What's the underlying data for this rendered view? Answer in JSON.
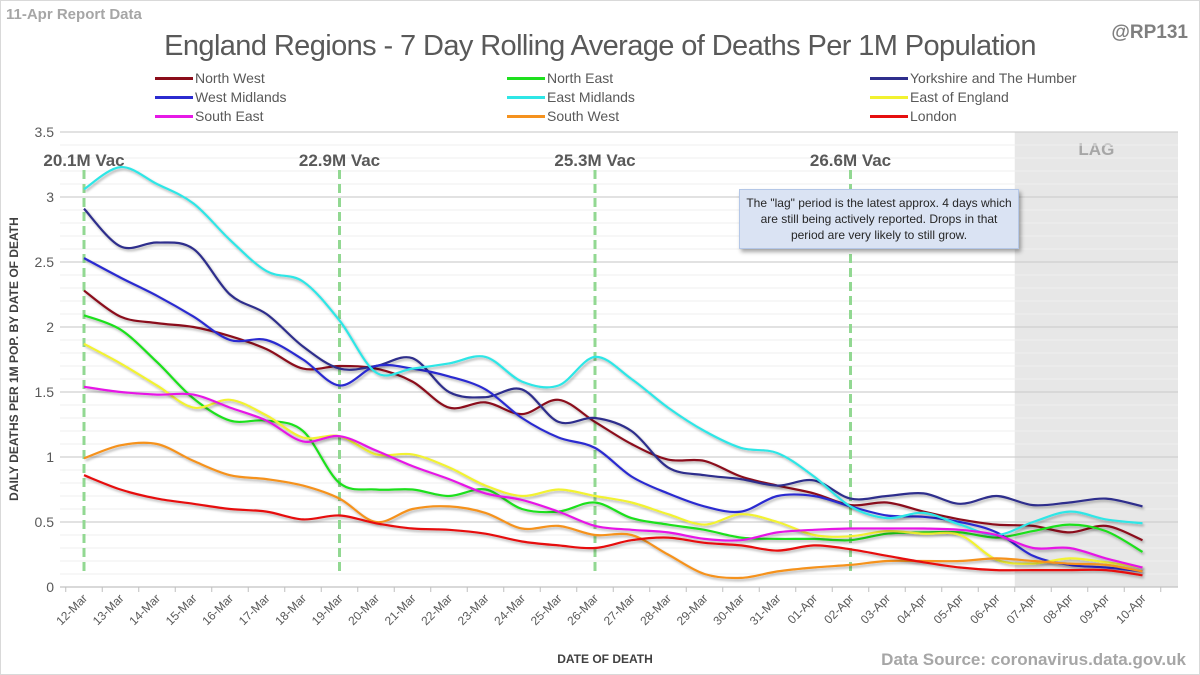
{
  "header": {
    "report_label": "11-Apr Report Data",
    "handle": "@RP131",
    "source": "Data Source: coronavirus.data.gov.uk"
  },
  "annotation": {
    "lag_note": "The \"lag\" period is the latest approx. 4 days which are still being actively reported. Drops in that period are very likely to still grow."
  },
  "chart_data": {
    "type": "line",
    "title": "England Regions - 7 Day Rolling Average of Deaths Per 1M Population",
    "xlabel": "DATE OF DEATH",
    "ylabel": "DAILY DEATHS PER 1M POP. BY DATE OF DEATH",
    "ylim": [
      0,
      3.5
    ],
    "yticks": [
      "0",
      "0.5",
      "1",
      "1.5",
      "2",
      "2.5",
      "3",
      "3.5"
    ],
    "grid": true,
    "legend_position": "top",
    "x": [
      "12-Mar",
      "13-Mar",
      "14-Mar",
      "15-Mar",
      "16-Mar",
      "17-Mar",
      "18-Mar",
      "19-Mar",
      "20-Mar",
      "21-Mar",
      "22-Mar",
      "23-Mar",
      "24-Mar",
      "25-Mar",
      "26-Mar",
      "27-Mar",
      "28-Mar",
      "29-Mar",
      "30-Mar",
      "31-Mar",
      "01-Apr",
      "02-Apr",
      "03-Apr",
      "04-Apr",
      "05-Apr",
      "06-Apr",
      "07-Apr",
      "08-Apr",
      "09-Apr",
      "10-Apr"
    ],
    "vaccination_markers": [
      {
        "date": "12-Mar",
        "label": "20.1M Vac"
      },
      {
        "date": "19-Mar",
        "label": "22.9M Vac"
      },
      {
        "date": "26-Mar",
        "label": "25.3M Vac"
      },
      {
        "date": "02-Apr",
        "label": "26.6M Vac"
      }
    ],
    "lag_region": {
      "label": "LAG",
      "start_after": "06-Apr",
      "end": "10-Apr"
    },
    "series": [
      {
        "name": "North West",
        "color": "#8b0d1a",
        "values": [
          2.28,
          2.08,
          2.03,
          2.0,
          1.93,
          1.83,
          1.68,
          1.7,
          1.68,
          1.58,
          1.38,
          1.42,
          1.33,
          1.44,
          1.27,
          1.1,
          0.98,
          0.97,
          0.85,
          0.78,
          0.72,
          0.63,
          0.65,
          0.58,
          0.52,
          0.48,
          0.47,
          0.42,
          0.47,
          0.36
        ]
      },
      {
        "name": "North East",
        "color": "#1ee01e",
        "values": [
          2.09,
          1.98,
          1.73,
          1.45,
          1.28,
          1.28,
          1.2,
          0.8,
          0.75,
          0.75,
          0.7,
          0.75,
          0.6,
          0.58,
          0.65,
          0.53,
          0.48,
          0.44,
          0.38,
          0.37,
          0.37,
          0.36,
          0.41,
          0.42,
          0.42,
          0.38,
          0.43,
          0.48,
          0.43,
          0.27
        ]
      },
      {
        "name": "Yorkshire and The Humber",
        "color": "#2e2e8c",
        "values": [
          2.91,
          2.62,
          2.65,
          2.6,
          2.25,
          2.1,
          1.85,
          1.68,
          1.7,
          1.76,
          1.5,
          1.46,
          1.52,
          1.27,
          1.3,
          1.2,
          0.92,
          0.86,
          0.83,
          0.78,
          0.82,
          0.68,
          0.7,
          0.72,
          0.64,
          0.7,
          0.63,
          0.65,
          0.68,
          0.62
        ]
      },
      {
        "name": "West Midlands",
        "color": "#2b2bd0",
        "values": [
          2.53,
          2.38,
          2.24,
          2.08,
          1.9,
          1.9,
          1.75,
          1.55,
          1.7,
          1.68,
          1.62,
          1.52,
          1.3,
          1.15,
          1.07,
          0.85,
          0.72,
          0.62,
          0.58,
          0.7,
          0.7,
          0.62,
          0.55,
          0.54,
          0.5,
          0.42,
          0.24,
          0.17,
          0.15,
          0.12
        ]
      },
      {
        "name": "East Midlands",
        "color": "#2ee6e6",
        "values": [
          3.06,
          3.23,
          3.1,
          2.95,
          2.67,
          2.43,
          2.35,
          2.05,
          1.65,
          1.68,
          1.72,
          1.77,
          1.58,
          1.55,
          1.77,
          1.6,
          1.38,
          1.2,
          1.07,
          1.03,
          0.85,
          0.62,
          0.53,
          0.57,
          0.48,
          0.4,
          0.5,
          0.58,
          0.52,
          0.49
        ]
      },
      {
        "name": "East of England",
        "color": "#f2f230",
        "values": [
          1.87,
          1.72,
          1.55,
          1.38,
          1.44,
          1.32,
          1.15,
          1.16,
          1.02,
          1.02,
          0.92,
          0.78,
          0.7,
          0.75,
          0.7,
          0.65,
          0.56,
          0.48,
          0.56,
          0.5,
          0.4,
          0.39,
          0.43,
          0.41,
          0.4,
          0.21,
          0.18,
          0.22,
          0.19,
          0.15
        ]
      },
      {
        "name": "South East",
        "color": "#e619e6",
        "values": [
          1.54,
          1.5,
          1.48,
          1.48,
          1.38,
          1.28,
          1.12,
          1.16,
          1.05,
          0.93,
          0.83,
          0.72,
          0.67,
          0.58,
          0.47,
          0.44,
          0.42,
          0.37,
          0.36,
          0.42,
          0.44,
          0.45,
          0.45,
          0.45,
          0.44,
          0.4,
          0.3,
          0.3,
          0.22,
          0.15
        ]
      },
      {
        "name": "South West",
        "color": "#f5921e",
        "values": [
          0.99,
          1.09,
          1.1,
          0.97,
          0.86,
          0.83,
          0.78,
          0.68,
          0.5,
          0.6,
          0.62,
          0.57,
          0.45,
          0.47,
          0.4,
          0.4,
          0.25,
          0.1,
          0.07,
          0.12,
          0.15,
          0.17,
          0.2,
          0.2,
          0.2,
          0.22,
          0.2,
          0.18,
          0.17,
          0.12
        ]
      },
      {
        "name": "London",
        "color": "#e60f0f",
        "values": [
          0.86,
          0.75,
          0.68,
          0.64,
          0.6,
          0.58,
          0.52,
          0.55,
          0.49,
          0.45,
          0.44,
          0.41,
          0.35,
          0.32,
          0.3,
          0.36,
          0.38,
          0.34,
          0.32,
          0.28,
          0.32,
          0.29,
          0.24,
          0.19,
          0.15,
          0.13,
          0.13,
          0.13,
          0.13,
          0.09
        ]
      }
    ]
  }
}
